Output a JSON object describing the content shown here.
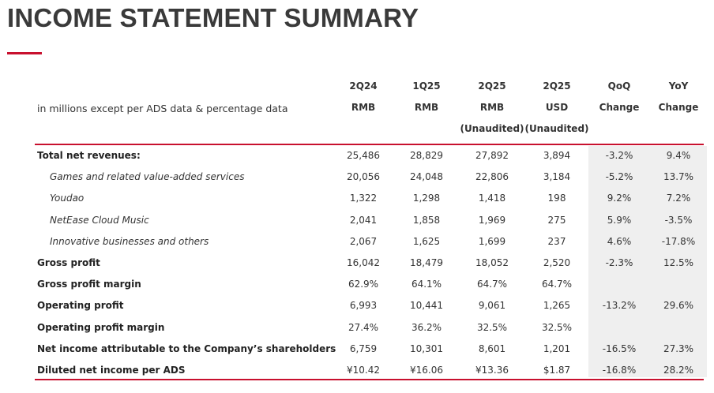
{
  "title": "INCOME STATEMENT SUMMARY",
  "note": "in millions except per ADS data & percentage data",
  "columns": [
    {
      "l1": "2Q24",
      "l2": "RMB",
      "l3": ""
    },
    {
      "l1": "1Q25",
      "l2": "RMB",
      "l3": ""
    },
    {
      "l1": "2Q25",
      "l2": "RMB",
      "l3": "(Unaudited)"
    },
    {
      "l1": "2Q25",
      "l2": "USD",
      "l3": "(Unaudited)"
    },
    {
      "l1": "QoQ",
      "l2": "Change",
      "l3": ""
    },
    {
      "l1": "YoY",
      "l2": "Change",
      "l3": ""
    }
  ],
  "rows": [
    {
      "label": "Total net revenues:",
      "style": "bold",
      "values": [
        "25,486",
        "28,829",
        "27,892",
        "3,894",
        "-3.2%",
        "9.4%"
      ]
    },
    {
      "label": "Games and related value-added services",
      "style": "sub",
      "values": [
        "20,056",
        "24,048",
        "22,806",
        "3,184",
        "-5.2%",
        "13.7%"
      ]
    },
    {
      "label": "Youdao",
      "style": "sub",
      "values": [
        "1,322",
        "1,298",
        "1,418",
        "198",
        "9.2%",
        "7.2%"
      ]
    },
    {
      "label": "NetEase Cloud Music",
      "style": "sub",
      "values": [
        "2,041",
        "1,858",
        "1,969",
        "275",
        "5.9%",
        "-3.5%"
      ]
    },
    {
      "label": "Innovative businesses and others",
      "style": "sub",
      "values": [
        "2,067",
        "1,625",
        "1,699",
        "237",
        "4.6%",
        "-17.8%"
      ]
    },
    {
      "label": "Gross profit",
      "style": "bold",
      "values": [
        "16,042",
        "18,479",
        "18,052",
        "2,520",
        "-2.3%",
        "12.5%"
      ]
    },
    {
      "label": "Gross profit margin",
      "style": "bold",
      "values": [
        "62.9%",
        "64.1%",
        "64.7%",
        "64.7%",
        "",
        ""
      ]
    },
    {
      "label": "Operating profit",
      "style": "bold",
      "values": [
        "6,993",
        "10,441",
        "9,061",
        "1,265",
        "-13.2%",
        "29.6%"
      ]
    },
    {
      "label": "Operating profit margin",
      "style": "bold",
      "values": [
        "27.4%",
        "36.2%",
        "32.5%",
        "32.5%",
        "",
        ""
      ]
    },
    {
      "label": "Net income attributable to the Company’s shareholders",
      "style": "bold",
      "values": [
        "6,759",
        "10,301",
        "8,601",
        "1,201",
        "-16.5%",
        "27.3%"
      ]
    },
    {
      "label": "Diluted net income per ADS",
      "style": "bold",
      "values": [
        "¥10.42",
        "¥16.06",
        "¥13.36",
        "$1.87",
        "-16.8%",
        "28.2%"
      ]
    }
  ],
  "colors": {
    "accent": "#c8102e",
    "shade": "#efefef",
    "title": "#3a3a3a"
  }
}
